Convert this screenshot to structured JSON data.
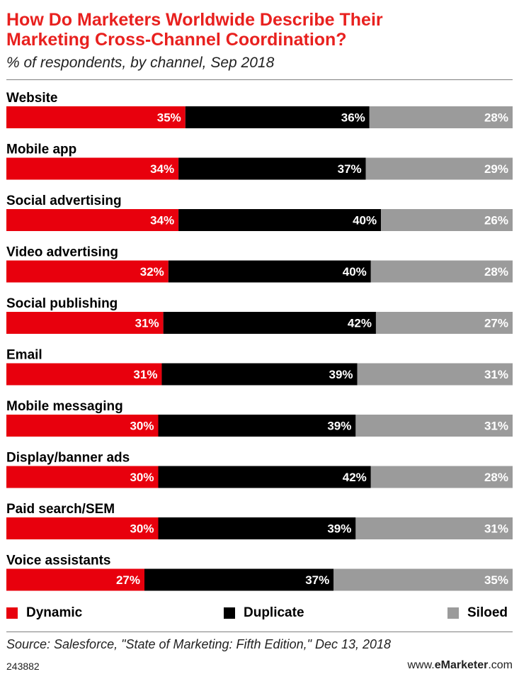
{
  "header": {
    "title_line1": "How Do Marketers Worldwide Describe Their",
    "title_line2": "Marketing Cross-Channel Coordination?",
    "subtitle": "% of respondents, by channel, Sep 2018"
  },
  "colors": {
    "title": "#e8211f",
    "dynamic": "#e8000d",
    "duplicate": "#000000",
    "siloed": "#9b9b9b"
  },
  "chart_data": {
    "type": "bar",
    "orientation": "horizontal",
    "stacked": true,
    "unit": "%",
    "categories": [
      "Website",
      "Mobile app",
      "Social advertising",
      "Video advertising",
      "Social publishing",
      "Email",
      "Mobile messaging",
      "Display/banner ads",
      "Paid search/SEM",
      "Voice assistants"
    ],
    "series": [
      {
        "name": "Dynamic",
        "color": "#e8000d",
        "values": [
          35,
          34,
          34,
          32,
          31,
          31,
          30,
          30,
          30,
          27
        ]
      },
      {
        "name": "Duplicate",
        "color": "#000000",
        "values": [
          36,
          37,
          40,
          40,
          42,
          39,
          39,
          42,
          39,
          37
        ]
      },
      {
        "name": "Siloed",
        "color": "#9b9b9b",
        "values": [
          28,
          29,
          26,
          28,
          27,
          31,
          31,
          28,
          31,
          35
        ]
      }
    ],
    "legend_position": "bottom",
    "grid": false
  },
  "legend": {
    "dynamic": "Dynamic",
    "duplicate": "Duplicate",
    "siloed": "Siloed"
  },
  "footer": {
    "source": "Source: Salesforce, \"State of Marketing: Fifth Edition,\" Dec 13, 2018",
    "chart_id": "243882",
    "brand_prefix": "www.",
    "brand_bold": "eMarketer",
    "brand_suffix": ".com"
  }
}
